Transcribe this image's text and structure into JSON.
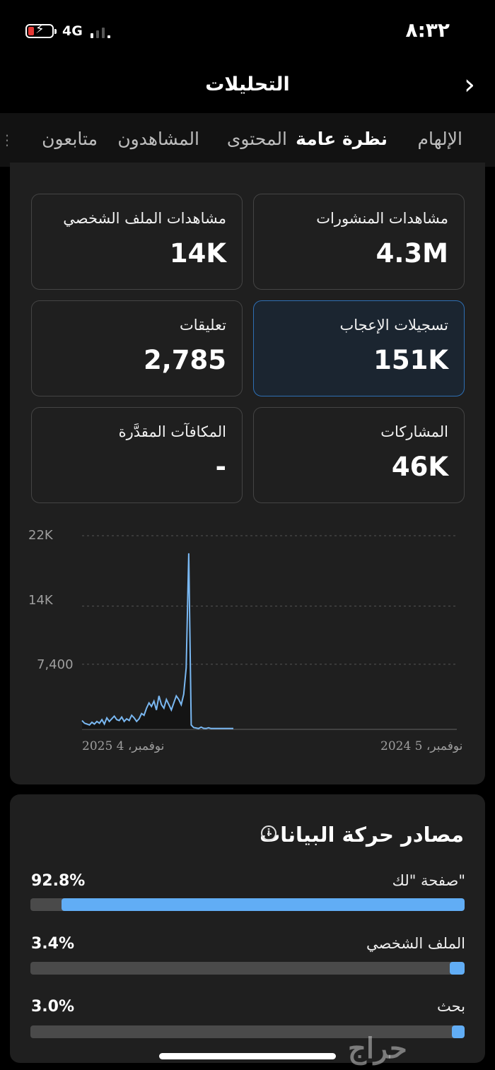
{
  "status_bar": {
    "network": "4G",
    "time": "٨:٣٢"
  },
  "header": {
    "title": "التحليلات",
    "back_icon": "chevron-right-icon"
  },
  "tabs": [
    {
      "label": "الإلهام",
      "active": false
    },
    {
      "label": "نظرة عامة",
      "active": true
    },
    {
      "label": "المحتوى",
      "active": false
    },
    {
      "label": "المشاهدون",
      "active": false
    },
    {
      "label": "متابعون",
      "active": false
    }
  ],
  "metrics": [
    {
      "label": "مشاهدات المنشورات",
      "value": "4.3M",
      "active": false
    },
    {
      "label": "مشاهدات الملف الشخصي",
      "value": "14K",
      "active": false
    },
    {
      "label": "تسجيلات الإعجاب",
      "value": "151K",
      "active": true
    },
    {
      "label": "تعليقات",
      "value": "2,785",
      "active": false
    },
    {
      "label": "المشاركات",
      "value": "46K",
      "active": false
    },
    {
      "label": "المكافآت المقدَّرة",
      "value": "-",
      "active": false
    }
  ],
  "chart_data": {
    "type": "line",
    "yticks": [
      "22K",
      "14K",
      "7,400"
    ],
    "ylim": [
      0,
      22000
    ],
    "xticks": [
      "نوفمبر، 5 2024",
      "نوفمبر، 4 2025"
    ],
    "color": "#7ab8f2",
    "grid": true,
    "values": [
      1000,
      700,
      600,
      500,
      800,
      600,
      900,
      700,
      1100,
      600,
      1300,
      900,
      1200,
      1500,
      1100,
      1000,
      1400,
      900,
      1200,
      1000,
      1600,
      1300,
      900,
      1200,
      1800,
      1600,
      2400,
      3000,
      2600,
      3200,
      2200,
      3800,
      2800,
      2400,
      3400,
      2800,
      2200,
      3000,
      3800,
      3400,
      2800,
      4000,
      7000,
      20000,
      500,
      200,
      150,
      100,
      250,
      120,
      100,
      180,
      100,
      100,
      100,
      100,
      100,
      100,
      100,
      100,
      100,
      100
    ]
  },
  "traffic": {
    "title": "مصادر حركة البيانات",
    "info_icon": "info-icon",
    "sources": [
      {
        "label": "صفحة \"لك\"",
        "percent": "92.8%",
        "fraction": 0.928
      },
      {
        "label": "الملف الشخصي",
        "percent": "3.4%",
        "fraction": 0.034
      },
      {
        "label": "بحث",
        "percent": "3.0%",
        "fraction": 0.03
      }
    ]
  },
  "watermark": "حراج"
}
